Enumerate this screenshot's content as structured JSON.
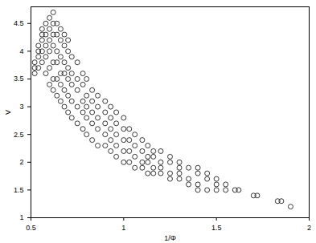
{
  "chart_data": {
    "type": "scatter",
    "x_label": "1/Φ",
    "y_label": "V",
    "marker": "circle",
    "color": "#222222",
    "xlim": [
      0.5,
      2
    ],
    "ylim": [
      1,
      4.8
    ],
    "xticks": [
      0.5,
      1,
      1.5,
      2
    ],
    "yticks": [
      1,
      1.5,
      2,
      2.5,
      3,
      3.5,
      4,
      4.5
    ],
    "x": [
      0.52,
      0.52,
      0.52,
      0.54,
      0.54,
      0.54,
      0.54,
      0.56,
      0.56,
      0.56,
      0.56,
      0.56,
      0.58,
      0.58,
      0.58,
      0.58,
      0.58,
      0.6,
      0.6,
      0.6,
      0.6,
      0.6,
      0.6,
      0.62,
      0.62,
      0.62,
      0.62,
      0.62,
      0.62,
      0.62,
      0.64,
      0.64,
      0.64,
      0.64,
      0.64,
      0.64,
      0.66,
      0.66,
      0.66,
      0.66,
      0.66,
      0.66,
      0.68,
      0.68,
      0.68,
      0.68,
      0.68,
      0.68,
      0.7,
      0.7,
      0.7,
      0.7,
      0.7,
      0.7,
      0.72,
      0.72,
      0.72,
      0.72,
      0.72,
      0.75,
      0.75,
      0.75,
      0.75,
      0.75,
      0.78,
      0.78,
      0.78,
      0.78,
      0.78,
      0.8,
      0.8,
      0.8,
      0.8,
      0.8,
      0.83,
      0.83,
      0.83,
      0.83,
      0.83,
      0.86,
      0.86,
      0.86,
      0.86,
      0.86,
      0.9,
      0.9,
      0.9,
      0.9,
      0.9,
      0.93,
      0.93,
      0.93,
      0.93,
      0.93,
      0.96,
      0.96,
      0.96,
      0.96,
      0.96,
      1.0,
      1.0,
      1.0,
      1.0,
      1.0,
      1.03,
      1.03,
      1.03,
      1.03,
      1.06,
      1.06,
      1.06,
      1.06,
      1.1,
      1.1,
      1.1,
      1.1,
      1.13,
      1.13,
      1.13,
      1.13,
      1.16,
      1.16,
      1.16,
      1.16,
      1.2,
      1.2,
      1.2,
      1.2,
      1.25,
      1.25,
      1.25,
      1.25,
      1.3,
      1.3,
      1.3,
      1.3,
      1.35,
      1.35,
      1.35,
      1.4,
      1.4,
      1.4,
      1.4,
      1.45,
      1.45,
      1.45,
      1.5,
      1.5,
      1.5,
      1.55,
      1.55,
      1.6,
      1.62,
      1.7,
      1.72,
      1.83,
      1.85,
      1.9
    ],
    "values": [
      3.6,
      3.7,
      3.8,
      3.7,
      3.9,
      4.0,
      4.1,
      3.8,
      4.0,
      4.2,
      4.3,
      4.4,
      3.6,
      3.9,
      4.1,
      4.3,
      4.5,
      3.4,
      3.7,
      4.0,
      4.2,
      4.4,
      4.6,
      3.3,
      3.5,
      3.8,
      4.1,
      4.3,
      4.5,
      4.7,
      3.2,
      3.5,
      3.8,
      4.0,
      4.3,
      4.5,
      3.1,
      3.4,
      3.6,
      3.9,
      4.2,
      4.4,
      3.0,
      3.3,
      3.6,
      3.8,
      4.1,
      4.3,
      2.9,
      3.2,
      3.5,
      3.7,
      4.0,
      4.2,
      2.8,
      3.1,
      3.4,
      3.6,
      3.9,
      2.7,
      3.0,
      3.3,
      3.5,
      3.8,
      2.6,
      2.9,
      3.1,
      3.4,
      3.6,
      2.5,
      2.8,
      3.0,
      3.2,
      3.5,
      2.4,
      2.7,
      2.9,
      3.1,
      3.3,
      2.3,
      2.6,
      2.8,
      3.0,
      3.2,
      2.3,
      2.5,
      2.7,
      2.9,
      3.1,
      2.2,
      2.4,
      2.6,
      2.8,
      3.0,
      2.1,
      2.3,
      2.5,
      2.7,
      2.9,
      2.0,
      2.2,
      2.4,
      2.6,
      2.8,
      2.0,
      2.2,
      2.4,
      2.6,
      1.9,
      2.1,
      2.3,
      2.5,
      1.9,
      2.0,
      2.2,
      2.4,
      1.8,
      2.0,
      2.1,
      2.3,
      1.8,
      1.9,
      2.1,
      2.2,
      1.8,
      1.9,
      2.0,
      2.2,
      1.7,
      1.8,
      2.0,
      2.1,
      1.7,
      1.8,
      1.9,
      2.0,
      1.6,
      1.7,
      1.9,
      1.5,
      1.6,
      1.8,
      1.9,
      1.5,
      1.7,
      1.8,
      1.5,
      1.6,
      1.7,
      1.5,
      1.6,
      1.5,
      1.5,
      1.4,
      1.4,
      1.3,
      1.3,
      1.2
    ]
  }
}
